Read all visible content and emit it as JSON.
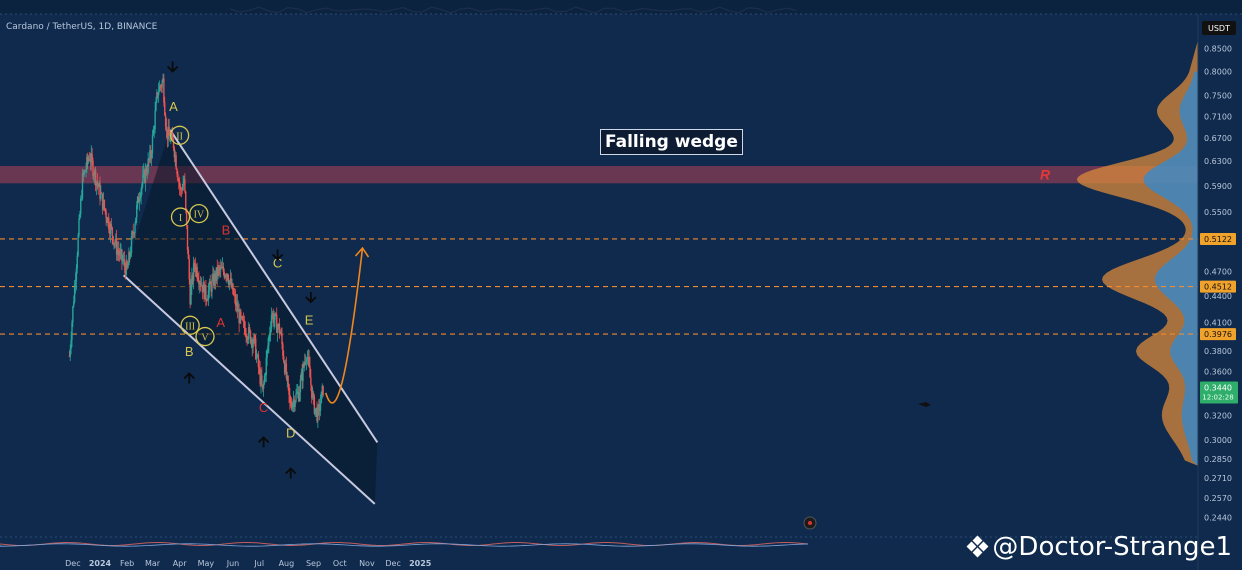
{
  "header": {
    "symbol": "Cardano / TetherUS, 1D, BINANCE",
    "currency": "USDT"
  },
  "annotation_title": "Falling wedge",
  "resistance_label": "R",
  "watermark": "@Doctor-Strange1",
  "colors": {
    "background": "#0f2a4d",
    "up": "#26a69a",
    "down": "#ef5350",
    "wedge_line": "#c7c9de",
    "arrow_orange": "#f0861c",
    "level_orange": "#f28a2e",
    "zone": "#7a3a55",
    "wave_yellow": "#d6c650",
    "wave_red": "#e0332f",
    "volume_blue": "#2f8bd6",
    "volume_orange": "#d98a3a"
  },
  "chart_data": {
    "type": "candlestick",
    "yscale": "log",
    "ylim": [
      0.236,
      0.87
    ],
    "price_ticks": [
      "0.8500",
      "0.8000",
      "0.7500",
      "0.7100",
      "0.6700",
      "0.6300",
      "0.5900",
      "0.5500",
      "0.5122",
      "0.4700",
      "0.4512",
      "0.4400",
      "0.4100",
      "0.3976",
      "0.3800",
      "0.3600",
      "0.3440",
      "0.3200",
      "0.3000",
      "0.2850",
      "0.2710",
      "0.2570",
      "0.2440"
    ],
    "x_labels": [
      "Dec",
      "2024",
      "Feb",
      "Mar",
      "Apr",
      "May",
      "Jun",
      "Jul",
      "Aug",
      "Sep",
      "Oct",
      "Nov",
      "Dec",
      "2025"
    ],
    "current_price": "0.3440",
    "countdown": "12:02:28",
    "levels": [
      {
        "label": "0.5122",
        "price": 0.5122
      },
      {
        "label": "0.4512",
        "price": 0.4512
      },
      {
        "label": "0.3976",
        "price": 0.3976
      }
    ],
    "resistance_zone": [
      0.594,
      0.622
    ],
    "price_path": [
      {
        "date": "2023-11-27",
        "price": 0.375
      },
      {
        "date": "2023-12-12",
        "price": 0.6
      },
      {
        "date": "2023-12-20",
        "price": 0.64
      },
      {
        "date": "2024-01-05",
        "price": 0.56
      },
      {
        "date": "2024-01-20",
        "price": 0.5
      },
      {
        "date": "2024-02-01",
        "price": 0.47
      },
      {
        "date": "2024-02-15",
        "price": 0.58
      },
      {
        "date": "2024-02-28",
        "price": 0.64
      },
      {
        "date": "2024-03-07",
        "price": 0.76
      },
      {
        "date": "2024-03-13",
        "price": 0.78
      },
      {
        "date": "2024-03-17",
        "price": 0.68
      },
      {
        "date": "2024-03-25",
        "price": 0.66
      },
      {
        "date": "2024-04-02",
        "price": 0.58
      },
      {
        "date": "2024-04-06",
        "price": 0.6
      },
      {
        "date": "2024-04-13",
        "price": 0.44
      },
      {
        "date": "2024-04-18",
        "price": 0.48
      },
      {
        "date": "2024-05-01",
        "price": 0.44
      },
      {
        "date": "2024-05-15",
        "price": 0.47
      },
      {
        "date": "2024-05-25",
        "price": 0.47
      },
      {
        "date": "2024-06-10",
        "price": 0.41
      },
      {
        "date": "2024-06-25",
        "price": 0.39
      },
      {
        "date": "2024-07-05",
        "price": 0.34
      },
      {
        "date": "2024-07-15",
        "price": 0.42
      },
      {
        "date": "2024-07-25",
        "price": 0.4
      },
      {
        "date": "2024-08-05",
        "price": 0.33
      },
      {
        "date": "2024-08-15",
        "price": 0.34
      },
      {
        "date": "2024-08-24",
        "price": 0.38
      },
      {
        "date": "2024-09-01",
        "price": 0.33
      },
      {
        "date": "2024-09-06",
        "price": 0.32
      },
      {
        "date": "2024-09-12",
        "price": 0.344
      }
    ],
    "wedge": {
      "upper": [
        {
          "date": "2024-03-21",
          "price": 0.685
        },
        {
          "date": "2024-11-13",
          "price": 0.298
        }
      ],
      "lower": [
        {
          "date": "2024-01-28",
          "price": 0.465
        },
        {
          "date": "2024-11-10",
          "price": 0.253
        }
      ]
    },
    "projection": [
      {
        "date": "2024-09-15",
        "price": 0.34
      },
      {
        "date": "2024-09-28",
        "price": 0.325
      },
      {
        "date": "2024-10-12",
        "price": 0.37
      },
      {
        "date": "2024-10-27",
        "price": 0.5
      }
    ],
    "wave_labels": [
      {
        "text": "A",
        "date": "2024-03-25",
        "price": 0.72,
        "color": "yellow"
      },
      {
        "text": "B",
        "date": "2024-04-12",
        "price": 0.375,
        "color": "yellow"
      },
      {
        "text": "C",
        "date": "2024-07-22",
        "price": 0.475,
        "color": "yellow"
      },
      {
        "text": "D",
        "date": "2024-08-06",
        "price": 0.302,
        "color": "yellow"
      },
      {
        "text": "E",
        "date": "2024-08-27",
        "price": 0.408,
        "color": "yellow"
      },
      {
        "text": "A",
        "date": "2024-05-18",
        "price": 0.405,
        "color": "red"
      },
      {
        "text": "B",
        "date": "2024-05-24",
        "price": 0.518,
        "color": "red"
      },
      {
        "text": "C",
        "date": "2024-07-06",
        "price": 0.323,
        "color": "red"
      }
    ],
    "wave_circles": [
      {
        "text": "II",
        "date": "2024-04-01",
        "price": 0.675
      },
      {
        "text": "I",
        "date": "2024-04-02",
        "price": 0.543
      },
      {
        "text": "IV",
        "date": "2024-04-23",
        "price": 0.548
      },
      {
        "text": "III",
        "date": "2024-04-13",
        "price": 0.407
      },
      {
        "text": "V",
        "date": "2024-04-30",
        "price": 0.395
      }
    ],
    "arrows": [
      {
        "dir": "down",
        "date": "2024-03-24",
        "price": 0.8
      },
      {
        "dir": "up",
        "date": "2024-04-12",
        "price": 0.358
      },
      {
        "dir": "down",
        "date": "2024-07-22",
        "price": 0.485
      },
      {
        "dir": "up",
        "date": "2024-07-06",
        "price": 0.302
      },
      {
        "dir": "up",
        "date": "2024-08-06",
        "price": 0.278
      },
      {
        "dir": "down",
        "date": "2024-08-29",
        "price": 0.433
      }
    ]
  }
}
